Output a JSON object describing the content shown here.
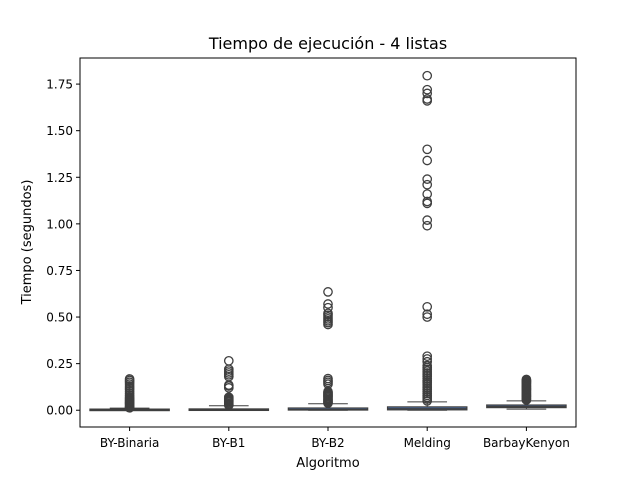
{
  "chart_data": {
    "type": "box",
    "title": "Tiempo de ejecución - 4 listas",
    "xlabel": "Algoritmo",
    "ylabel": "Tiempo (segundos)",
    "ylim": [
      -0.09,
      1.89
    ],
    "yticks": [
      0.0,
      0.25,
      0.5,
      0.75,
      1.0,
      1.25,
      1.5,
      1.75
    ],
    "ytick_labels": [
      "0.00",
      "0.25",
      "0.50",
      "0.75",
      "1.00",
      "1.25",
      "1.50",
      "1.75"
    ],
    "grid": false,
    "colors": {
      "box_fill": "#4c72b0",
      "box_edge": "#3f3f3f",
      "outlier_edge": "#3f3f3f",
      "frame": "#000000"
    },
    "categories": [
      "BY-Binaria",
      "BY-B1",
      "BY-B2",
      "Melding",
      "BarbayKenyon"
    ],
    "boxes": [
      {
        "name": "BY-Binaria",
        "whisker_low": 0.0,
        "q1": 0.001,
        "median": 0.003,
        "q3": 0.006,
        "whisker_high": 0.011,
        "outliers": [
          0.013,
          0.016,
          0.02,
          0.025,
          0.03,
          0.035,
          0.04,
          0.045,
          0.05,
          0.055,
          0.06,
          0.065,
          0.07,
          0.08,
          0.09,
          0.1,
          0.11,
          0.12,
          0.13,
          0.14,
          0.15,
          0.16,
          0.168
        ]
      },
      {
        "name": "BY-B1",
        "whisker_low": 0.0,
        "q1": 0.001,
        "median": 0.003,
        "q3": 0.007,
        "whisker_high": 0.024,
        "outliers": [
          0.027,
          0.032,
          0.038,
          0.045,
          0.05,
          0.055,
          0.06,
          0.065,
          0.07,
          0.12,
          0.13,
          0.135,
          0.18,
          0.19,
          0.2,
          0.21,
          0.22,
          0.265
        ]
      },
      {
        "name": "BY-B2",
        "whisker_low": 0.0,
        "q1": 0.001,
        "median": 0.004,
        "q3": 0.012,
        "whisker_high": 0.035,
        "outliers": [
          0.038,
          0.042,
          0.048,
          0.053,
          0.058,
          0.064,
          0.07,
          0.075,
          0.08,
          0.085,
          0.09,
          0.095,
          0.1,
          0.14,
          0.15,
          0.16,
          0.17,
          0.46,
          0.47,
          0.48,
          0.49,
          0.5,
          0.51,
          0.52,
          0.55,
          0.57,
          0.635
        ]
      },
      {
        "name": "Melding",
        "whisker_low": 0.0,
        "q1": 0.002,
        "median": 0.008,
        "q3": 0.018,
        "whisker_high": 0.045,
        "outliers": [
          0.05,
          0.06,
          0.07,
          0.08,
          0.09,
          0.1,
          0.11,
          0.12,
          0.13,
          0.14,
          0.15,
          0.16,
          0.17,
          0.18,
          0.19,
          0.2,
          0.21,
          0.22,
          0.23,
          0.24,
          0.26,
          0.275,
          0.29,
          0.5,
          0.515,
          0.555,
          0.99,
          1.02,
          1.11,
          1.12,
          1.16,
          1.21,
          1.24,
          1.34,
          1.4,
          1.66,
          1.67,
          1.7,
          1.72,
          1.795
        ]
      },
      {
        "name": "BarbayKenyon",
        "whisker_low": 0.006,
        "q1": 0.014,
        "median": 0.02,
        "q3": 0.028,
        "whisker_high": 0.05,
        "outliers": [
          0.055,
          0.06,
          0.065,
          0.07,
          0.075,
          0.08,
          0.085,
          0.09,
          0.095,
          0.1,
          0.105,
          0.11,
          0.115,
          0.12,
          0.125,
          0.13,
          0.135,
          0.14,
          0.145,
          0.15,
          0.155,
          0.16,
          0.165
        ]
      }
    ]
  }
}
